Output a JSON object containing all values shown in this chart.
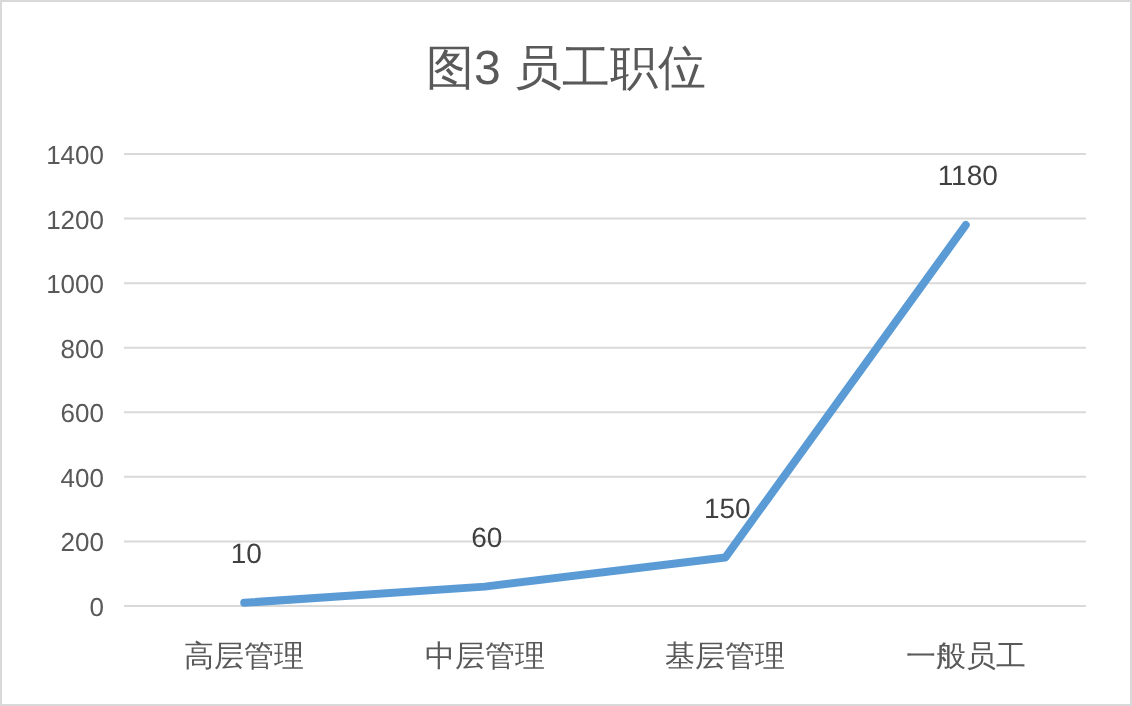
{
  "chart_data": {
    "type": "line",
    "title": "图3 员工职位",
    "categories": [
      "高层管理",
      "中层管理",
      "基层管理",
      "一般员工"
    ],
    "values": [
      10,
      60,
      150,
      1180
    ],
    "color": "#5b9bd5",
    "ylim": [
      0,
      1400
    ],
    "yticks": [
      0,
      200,
      400,
      600,
      800,
      1000,
      1200,
      1400
    ],
    "grid": "y",
    "data_labels": true
  }
}
